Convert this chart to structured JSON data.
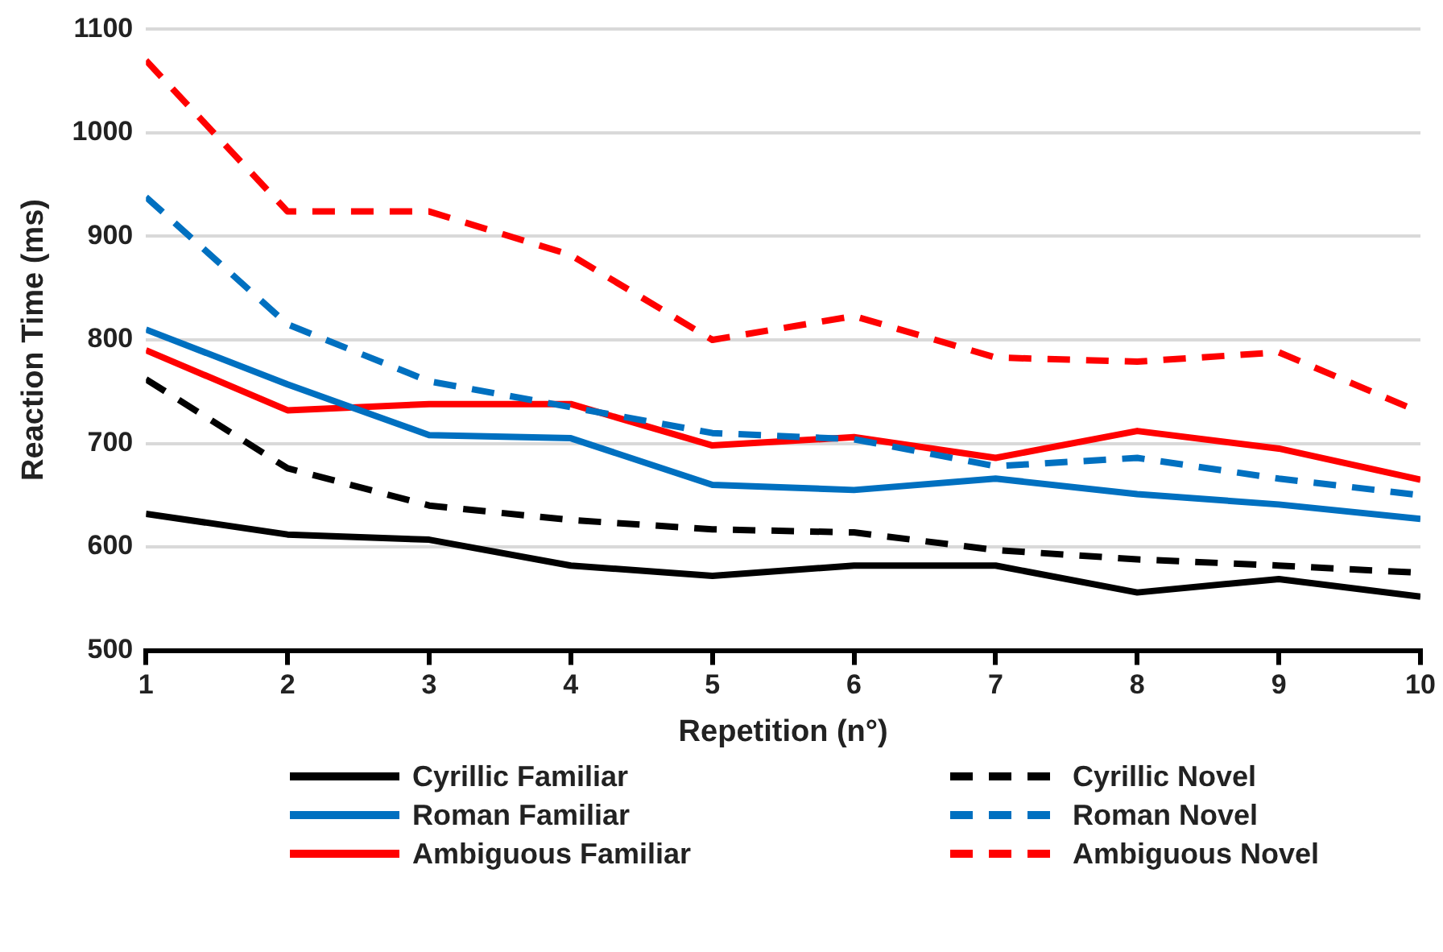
{
  "chart_data": {
    "type": "line",
    "xlabel": "Repetition (n°)",
    "ylabel": "Reaction Time (ms)",
    "x": [
      1,
      2,
      3,
      4,
      5,
      6,
      7,
      8,
      9,
      10
    ],
    "xlim": [
      1,
      10
    ],
    "xticks": [
      1,
      2,
      3,
      4,
      5,
      6,
      7,
      8,
      9,
      10
    ],
    "ylim": [
      500,
      1100
    ],
    "yticks": [
      500,
      600,
      700,
      800,
      900,
      1000,
      1100
    ],
    "grid": "y",
    "legend": "bottom",
    "marker": "none",
    "series": [
      {
        "name": "Cyrillic Familiar",
        "color": "#000000",
        "line_style": "solid",
        "values": [
          632,
          612,
          607,
          582,
          572,
          582,
          582,
          556,
          569,
          552
        ]
      },
      {
        "name": "Cyrillic Novel",
        "color": "#000000",
        "line_style": "dashed",
        "values": [
          762,
          676,
          640,
          626,
          617,
          614,
          597,
          588,
          582,
          575
        ]
      },
      {
        "name": "Roman Familiar",
        "color": "#0070c0",
        "line_style": "solid",
        "values": [
          810,
          757,
          708,
          705,
          660,
          655,
          666,
          651,
          641,
          627
        ]
      },
      {
        "name": "Roman Novel",
        "color": "#0070c0",
        "line_style": "dashed",
        "values": [
          938,
          815,
          760,
          735,
          710,
          704,
          678,
          686,
          666,
          650
        ]
      },
      {
        "name": "Ambiguous Familiar",
        "color": "#ff0000",
        "line_style": "solid",
        "values": [
          790,
          732,
          738,
          738,
          698,
          706,
          686,
          712,
          695,
          665
        ]
      },
      {
        "name": "Ambiguous Novel",
        "color": "#ff0000",
        "line_style": "dashed",
        "values": [
          1070,
          924,
          924,
          882,
          800,
          823,
          783,
          779,
          788,
          730
        ]
      }
    ]
  }
}
